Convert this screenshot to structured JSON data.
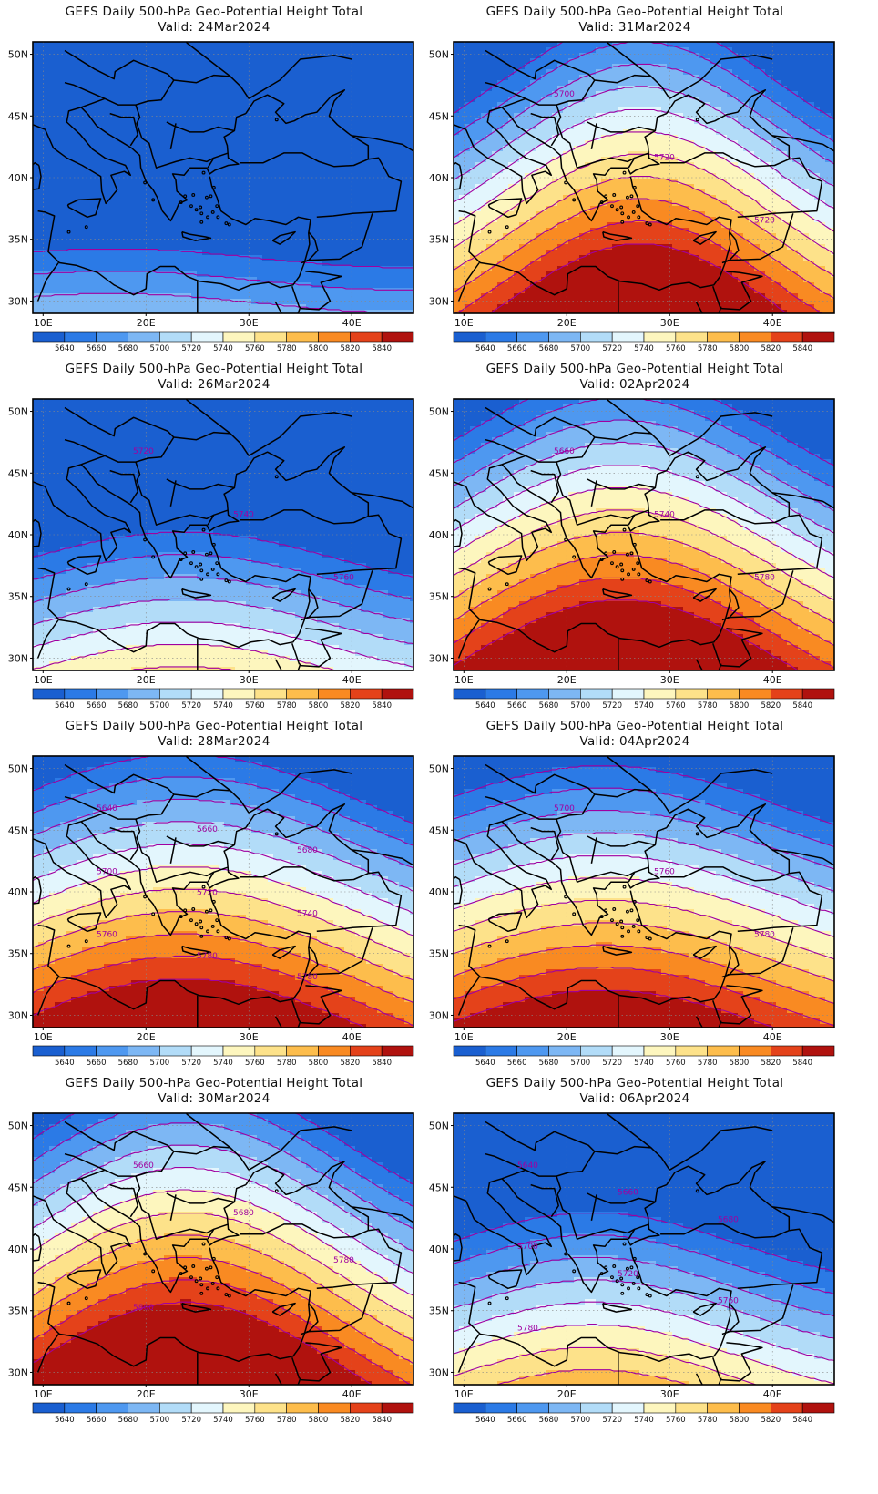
{
  "title_line": "GEFS Daily 500-hPa Geo-Potential Height Total",
  "levels": [
    5640,
    5660,
    5680,
    5700,
    5720,
    5740,
    5760,
    5780,
    5800,
    5820,
    5840
  ],
  "colorbar_colors": [
    "#1a5fd0",
    "#2b7ae6",
    "#4e98f0",
    "#7db7f4",
    "#b2dcf8",
    "#e3f6fd",
    "#fdf6be",
    "#fde28a",
    "#fdbd4c",
    "#f98a22",
    "#e4421a",
    "#b0120e"
  ],
  "lon_ticks": [
    "10E",
    "20E",
    "30E",
    "40E"
  ],
  "lat_ticks": [
    "50N",
    "45N",
    "40N",
    "35N",
    "30N"
  ],
  "colors": {
    "contour": "#a000a0",
    "land_outline": "#000000",
    "grid": "#888888"
  },
  "panels": [
    {
      "valid": "Valid: 24Mar2024",
      "field": {
        "p": [
          -8,
          30,
          -2,
          -1
        ],
        "w": 22
      },
      "labels": []
    },
    {
      "valid": "Valid: 31Mar2024",
      "field": {
        "p": [
          -4,
          28,
          0,
          5.5
        ],
        "w": 20
      },
      "labels": [
        "5700",
        "5720",
        "5720"
      ]
    },
    {
      "valid": "Valid: 26Mar2024",
      "field": {
        "p": [
          -7,
          24,
          -4,
          1.5
        ],
        "w": 25
      },
      "labels": [
        "5720",
        "5740",
        "5760"
      ]
    },
    {
      "valid": "Valid: 02Apr2024",
      "field": {
        "p": [
          -4,
          26,
          2,
          5.5
        ],
        "w": 25
      },
      "labels": [
        "5660",
        "5740",
        "5780"
      ]
    },
    {
      "valid": "Valid: 28Mar2024",
      "field": {
        "p": [
          -6,
          24,
          -2,
          6.5
        ],
        "w": 40
      },
      "labels": [
        "5640",
        "5660",
        "5680",
        "5700",
        "5720",
        "5740",
        "5760",
        "5780",
        "5780"
      ]
    },
    {
      "valid": "Valid: 04Apr2024",
      "field": {
        "p": [
          -4,
          24,
          -2,
          4
        ],
        "w": 35
      },
      "labels": [
        "5700",
        "5760",
        "5780"
      ]
    },
    {
      "valid": "Valid: 30Mar2024",
      "field": {
        "p": [
          -4,
          24,
          1,
          6
        ],
        "w": 25
      },
      "labels": [
        "5660",
        "5680",
        "5780",
        "5800"
      ]
    },
    {
      "valid": "Valid: 06Apr2024",
      "field": {
        "p": [
          -6,
          22,
          -3,
          2
        ],
        "w": 22
      },
      "labels": [
        "5640",
        "5660",
        "5680",
        "5700",
        "5720",
        "5760",
        "5780"
      ]
    }
  ]
}
